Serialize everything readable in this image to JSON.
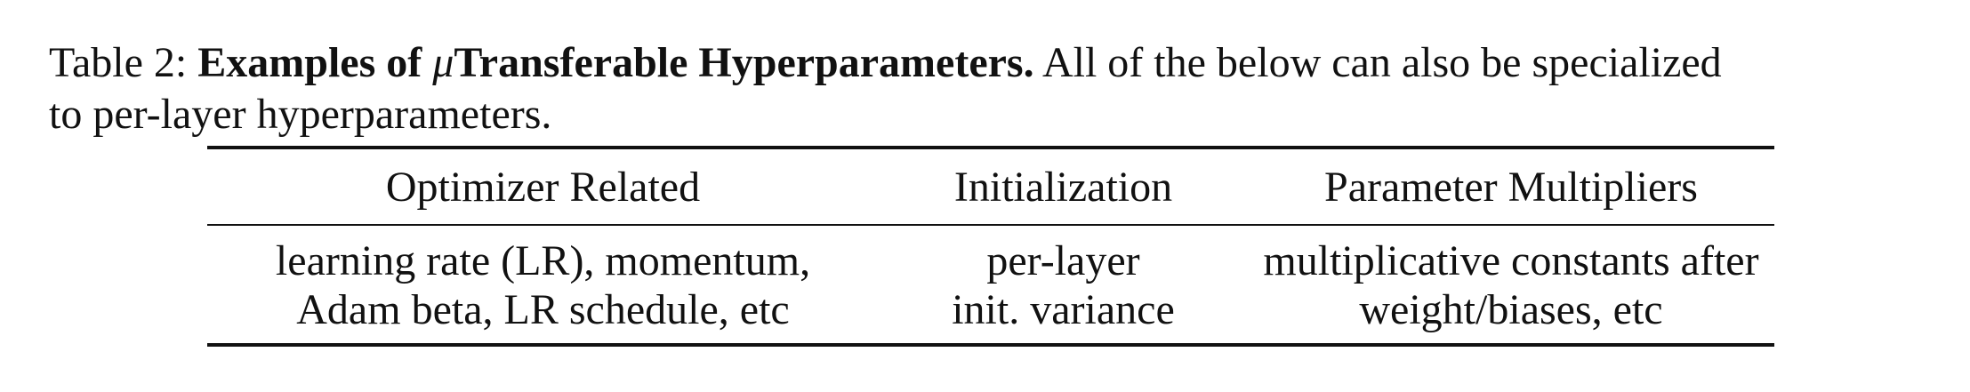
{
  "caption": {
    "label": "Table 2:",
    "title_prefix": "Examples of ",
    "title_mu": "μ",
    "title_suffix": "Transferable Hyperparameters.",
    "text_line1": "All of the below can also be specialized",
    "text_line2": "to per-layer hyperparameters."
  },
  "table": {
    "headers": [
      "Optimizer Related",
      "Initialization",
      "Parameter Multipliers"
    ],
    "rows": [
      {
        "optimizer": [
          "learning rate (LR), momentum,",
          "Adam beta, LR schedule, etc"
        ],
        "initialization": [
          "per-layer",
          "init. variance"
        ],
        "multipliers": [
          "multiplicative constants after",
          "weight/biases, etc"
        ]
      }
    ]
  }
}
